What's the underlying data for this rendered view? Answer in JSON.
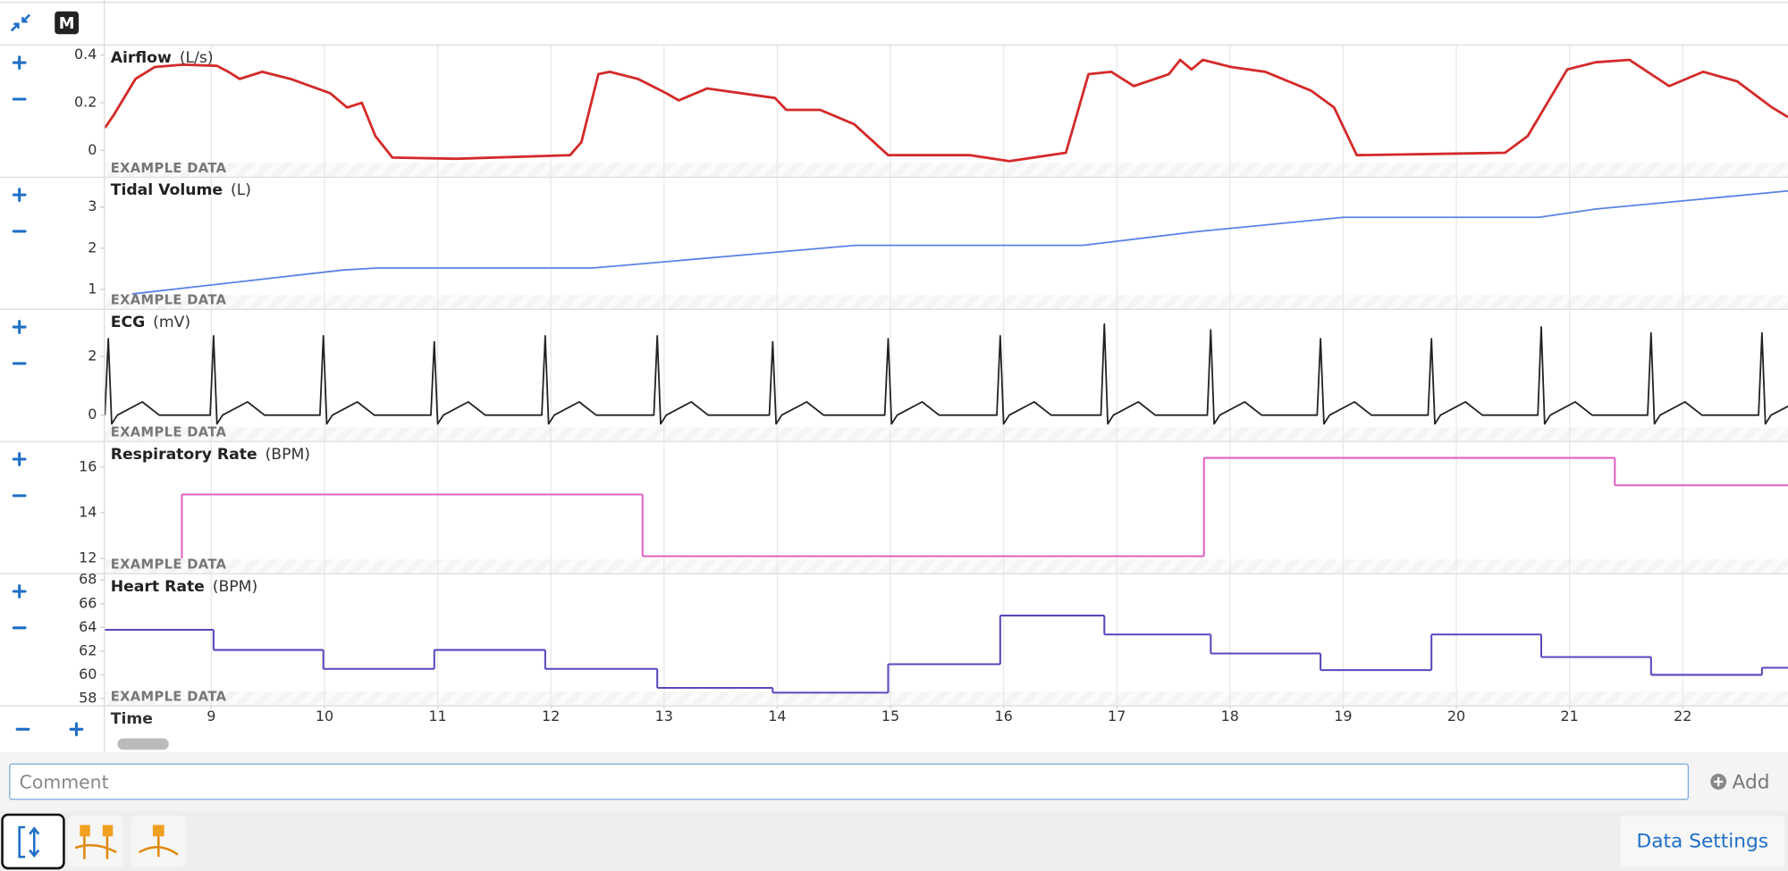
{
  "toolbar": {
    "mode": "M"
  },
  "chart_data": [
    {
      "type": "line",
      "title": "Airflow",
      "unit": "(L/s)",
      "annotation": "EXAMPLE DATA",
      "color": "#d42a2a",
      "x": [
        8.06,
        8.14,
        8.33,
        8.5,
        8.75,
        9.05,
        9.15,
        9.25,
        9.45,
        9.7,
        10.05,
        10.2,
        10.33,
        10.45,
        10.6,
        11.17,
        12.17,
        12.27,
        12.42,
        12.52,
        12.77,
        13.02,
        13.13,
        13.38,
        13.98,
        14.08,
        14.38,
        14.68,
        14.98,
        15.7,
        16.05,
        16.55,
        16.75,
        16.95,
        17.15,
        17.46,
        17.56,
        17.66,
        17.76,
        18.01,
        18.31,
        18.72,
        18.92,
        19.12,
        20.43,
        20.63,
        20.98,
        21.23,
        21.53,
        21.88,
        22.18,
        22.48,
        22.79,
        22.93
      ],
      "values": [
        0.095,
        0.15,
        0.3,
        0.35,
        0.36,
        0.355,
        0.33,
        0.3,
        0.33,
        0.3,
        0.24,
        0.18,
        0.2,
        0.06,
        -0.03,
        -0.035,
        -0.02,
        0.035,
        0.32,
        0.33,
        0.3,
        0.24,
        0.21,
        0.26,
        0.22,
        0.17,
        0.17,
        0.11,
        -0.02,
        -0.02,
        -0.045,
        -0.01,
        0.32,
        0.33,
        0.27,
        0.32,
        0.38,
        0.34,
        0.38,
        0.35,
        0.33,
        0.25,
        0.18,
        -0.02,
        -0.01,
        0.06,
        0.34,
        0.37,
        0.38,
        0.27,
        0.33,
        0.29,
        0.18,
        0.14
      ],
      "xlim": [
        8.06,
        22.93
      ],
      "ylim": [
        -0.11,
        0.44
      ],
      "yticks": [
        0,
        0.2,
        0.4
      ],
      "grid": true
    },
    {
      "type": "line",
      "title": "Tidal Volume",
      "unit": "(L)",
      "annotation": "EXAMPLE DATA",
      "color": "#5b82e8",
      "x": [
        8.3,
        10.16,
        10.46,
        12.37,
        14.69,
        16.7,
        17.7,
        19.0,
        20.73,
        21.23,
        22.93
      ],
      "values": [
        0.89,
        1.47,
        1.52,
        1.52,
        2.07,
        2.07,
        2.4,
        2.75,
        2.75,
        2.95,
        3.39
      ],
      "xlim": [
        8.06,
        22.93
      ],
      "ylim": [
        0.53,
        3.71
      ],
      "yticks": [
        1,
        2,
        3
      ],
      "grid": true
    },
    {
      "type": "line",
      "title": "ECG",
      "unit": "(mV)",
      "annotation": "EXAMPLE DATA",
      "color": "#222222",
      "x": [
        8.06,
        8.09,
        8.12,
        8.17,
        8.39,
        8.54,
        8.99,
        9.02,
        9.05,
        9.1,
        9.32,
        9.47,
        9.96,
        9.99,
        10.02,
        10.07,
        10.29,
        10.44,
        10.94,
        10.97,
        11.0,
        11.05,
        11.27,
        11.42,
        11.92,
        11.95,
        11.98,
        12.03,
        12.25,
        12.4,
        12.91,
        12.94,
        12.97,
        13.02,
        13.24,
        13.39,
        13.93,
        13.96,
        13.99,
        14.04,
        14.26,
        14.41,
        14.95,
        14.98,
        15.01,
        15.06,
        15.28,
        15.43,
        15.94,
        15.97,
        16.0,
        16.05,
        16.27,
        16.42,
        16.86,
        16.89,
        16.92,
        16.97,
        17.19,
        17.34,
        17.8,
        17.83,
        17.86,
        17.91,
        18.13,
        18.28,
        18.77,
        18.8,
        18.83,
        18.88,
        19.1,
        19.25,
        19.75,
        19.78,
        19.81,
        19.86,
        20.08,
        20.23,
        20.72,
        20.75,
        20.78,
        20.83,
        21.05,
        21.2,
        21.69,
        21.72,
        21.75,
        21.8,
        22.02,
        22.17,
        22.67,
        22.7,
        22.73,
        22.78,
        22.93
      ],
      "values": [
        0,
        2.6,
        -0.3,
        0,
        0.45,
        0,
        0,
        2.7,
        -0.3,
        0,
        0.45,
        0,
        0,
        2.7,
        -0.3,
        0,
        0.45,
        0,
        0,
        2.5,
        -0.3,
        0,
        0.45,
        0,
        0,
        2.7,
        -0.3,
        0,
        0.45,
        0,
        0,
        2.7,
        -0.3,
        0,
        0.45,
        0,
        0,
        2.5,
        -0.3,
        0,
        0.45,
        0,
        0,
        2.6,
        -0.3,
        0,
        0.45,
        0,
        0,
        2.7,
        -0.3,
        0,
        0.45,
        0,
        0,
        3.1,
        -0.3,
        0,
        0.45,
        0,
        0,
        2.9,
        -0.3,
        0,
        0.45,
        0,
        0,
        2.6,
        -0.3,
        0,
        0.45,
        0,
        0,
        2.6,
        -0.3,
        0,
        0.45,
        0,
        0,
        3.0,
        -0.3,
        0,
        0.45,
        0,
        0,
        2.8,
        -0.3,
        0,
        0.45,
        0,
        0,
        2.8,
        -0.3,
        0,
        0.3
      ],
      "xlim": [
        8.06,
        22.93
      ],
      "ylim": [
        -0.88,
        3.58
      ],
      "yticks": [
        0,
        2
      ],
      "grid": true
    },
    {
      "type": "step",
      "title": "Respiratory Rate",
      "unit": "(BPM)",
      "annotation": "EXAMPLE DATA",
      "color": "#e060c0",
      "x": [
        8.74,
        8.74,
        12.81,
        17.77,
        21.4
      ],
      "values": [
        12.0,
        14.8,
        12.1,
        16.4,
        15.2
      ],
      "xlim": [
        8.06,
        22.93
      ],
      "ylim": [
        11.36,
        17.09
      ],
      "yticks": [
        12,
        14,
        16
      ],
      "grid": true
    },
    {
      "type": "step",
      "title": "Heart Rate",
      "unit": "(BPM)",
      "annotation": "EXAMPLE DATA",
      "color": "#5548c0",
      "x": [
        8.06,
        9.02,
        9.99,
        10.97,
        11.95,
        12.94,
        13.96,
        14.98,
        15.97,
        16.89,
        17.83,
        18.8,
        19.78,
        20.75,
        21.72,
        22.7
      ],
      "values": [
        63.8,
        62.1,
        60.5,
        62.1,
        60.5,
        58.9,
        58.5,
        60.9,
        65.0,
        63.4,
        61.8,
        60.4,
        63.4,
        61.5,
        60.0,
        60.6
      ],
      "xlim": [
        8.06,
        22.93
      ],
      "ylim": [
        57.43,
        68.48
      ],
      "yticks": [
        58,
        60,
        62,
        64,
        66,
        68
      ],
      "grid": true,
      "xlabel": "Time",
      "xticks": [
        9,
        10,
        11,
        12,
        13,
        14,
        15,
        16,
        17,
        18,
        19,
        20,
        21,
        22
      ]
    }
  ],
  "comment": {
    "placeholder": "Comment",
    "button": "Add"
  },
  "footer": {
    "button": "Data Settings"
  }
}
